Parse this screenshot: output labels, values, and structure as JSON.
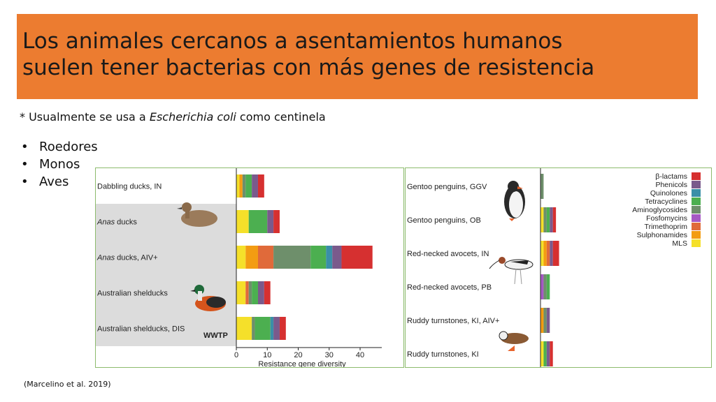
{
  "slide": {
    "title_line1": "Los animales cercanos a asentamientos humanos",
    "title_line2": "suelen tener bacterias con más genes de resistencia",
    "subtitle_prefix": "* Usualmente se usa a ",
    "subtitle_italic": "Escherichia coli",
    "subtitle_suffix": " como centinela",
    "bullets": [
      "Roedores",
      "Monos",
      "Aves"
    ],
    "citation": "(Marcelino et al. 2019)"
  },
  "colors": {
    "title_band": "#ec7c30",
    "panel_border": "#8dbb6d",
    "wwtp_band": "#dcdcdc"
  },
  "chart_data": [
    {
      "type": "bar",
      "orientation": "horizontal",
      "stacked": true,
      "xlabel": "Resistance gene diversity",
      "xlim": [
        0,
        47
      ],
      "xticks": [
        0,
        10,
        20,
        30,
        40
      ],
      "annotation": "WWTP",
      "categories": [
        {
          "label_italic": "",
          "label": "Dabbling ducks, IN",
          "highlight": false
        },
        {
          "label_italic": "Anas",
          "label": " ducks",
          "highlight": true
        },
        {
          "label_italic": "Anas",
          "label": " ducks, AIV+",
          "highlight": true
        },
        {
          "label_italic": "",
          "label": "Australian shelducks",
          "highlight": true
        },
        {
          "label_italic": "",
          "label": "Australian shelducks, DIS",
          "highlight": true
        }
      ],
      "series": [
        {
          "name": "MLS",
          "color": "#f5e02a",
          "values": [
            1,
            4,
            3,
            3,
            5
          ]
        },
        {
          "name": "Sulphonamides",
          "color": "#f39c12",
          "values": [
            1,
            0,
            4,
            0,
            0
          ]
        },
        {
          "name": "Trimethoprim",
          "color": "#e06a3a",
          "values": [
            0,
            0,
            5,
            1,
            0
          ]
        },
        {
          "name": "Fosfomycins",
          "color": "#a659c4",
          "values": [
            0,
            0,
            0,
            0,
            0
          ]
        },
        {
          "name": "Aminoglycosides",
          "color": "#6e8f6b",
          "values": [
            1,
            0,
            12,
            1,
            1
          ]
        },
        {
          "name": "Tetracyclines",
          "color": "#4caf50",
          "values": [
            2,
            6,
            5,
            2,
            5
          ]
        },
        {
          "name": "Quinolones",
          "color": "#3a8fa8",
          "values": [
            0,
            0,
            2,
            0,
            1
          ]
        },
        {
          "name": "Phenicols",
          "color": "#7a5a8c",
          "values": [
            2,
            2,
            3,
            2,
            2
          ]
        },
        {
          "name": "β-lactams",
          "color": "#d63030",
          "values": [
            2,
            2,
            10,
            2,
            2
          ]
        }
      ]
    },
    {
      "type": "bar",
      "orientation": "horizontal",
      "stacked": true,
      "xlim": [
        0,
        47
      ],
      "legend_position": "top-right",
      "categories": [
        {
          "label": "Gentoo penguins, GGV"
        },
        {
          "label": "Gentoo penguins, OB"
        },
        {
          "label": "Red-necked avocets, IN"
        },
        {
          "label": "Red-necked avocets, PB"
        },
        {
          "label": "Ruddy turnstones, KI, AIV+"
        },
        {
          "label": "Ruddy turnstones, KI"
        }
      ],
      "legend": [
        "β-lactams",
        "Phenicols",
        "Quinolones",
        "Tetracyclines",
        "Aminoglycosides",
        "Fosfomycins",
        "Trimethoprim",
        "Sulphonamides",
        "MLS"
      ],
      "series": [
        {
          "name": "MLS",
          "color": "#f5e02a",
          "values": [
            0,
            1,
            1,
            0,
            0,
            1
          ]
        },
        {
          "name": "Sulphonamides",
          "color": "#f39c12",
          "values": [
            0,
            0,
            1,
            0,
            1,
            0
          ]
        },
        {
          "name": "Trimethoprim",
          "color": "#e06a3a",
          "values": [
            0,
            0,
            1,
            0,
            0,
            0
          ]
        },
        {
          "name": "Fosfomycins",
          "color": "#a659c4",
          "values": [
            0,
            0,
            0,
            1,
            0,
            0
          ]
        },
        {
          "name": "Aminoglycosides",
          "color": "#6e8f6b",
          "values": [
            1,
            1,
            0,
            1,
            1,
            0
          ]
        },
        {
          "name": "Tetracyclines",
          "color": "#4caf50",
          "values": [
            0,
            1,
            0,
            1,
            0,
            1
          ]
        },
        {
          "name": "Quinolones",
          "color": "#3a8fa8",
          "values": [
            0,
            0,
            0,
            0,
            0,
            0
          ]
        },
        {
          "name": "Phenicols",
          "color": "#7a5a8c",
          "values": [
            0,
            1,
            1,
            0,
            1,
            1
          ]
        },
        {
          "name": "β-lactams",
          "color": "#d63030",
          "values": [
            0,
            1,
            2,
            0,
            0,
            1
          ]
        }
      ]
    }
  ]
}
